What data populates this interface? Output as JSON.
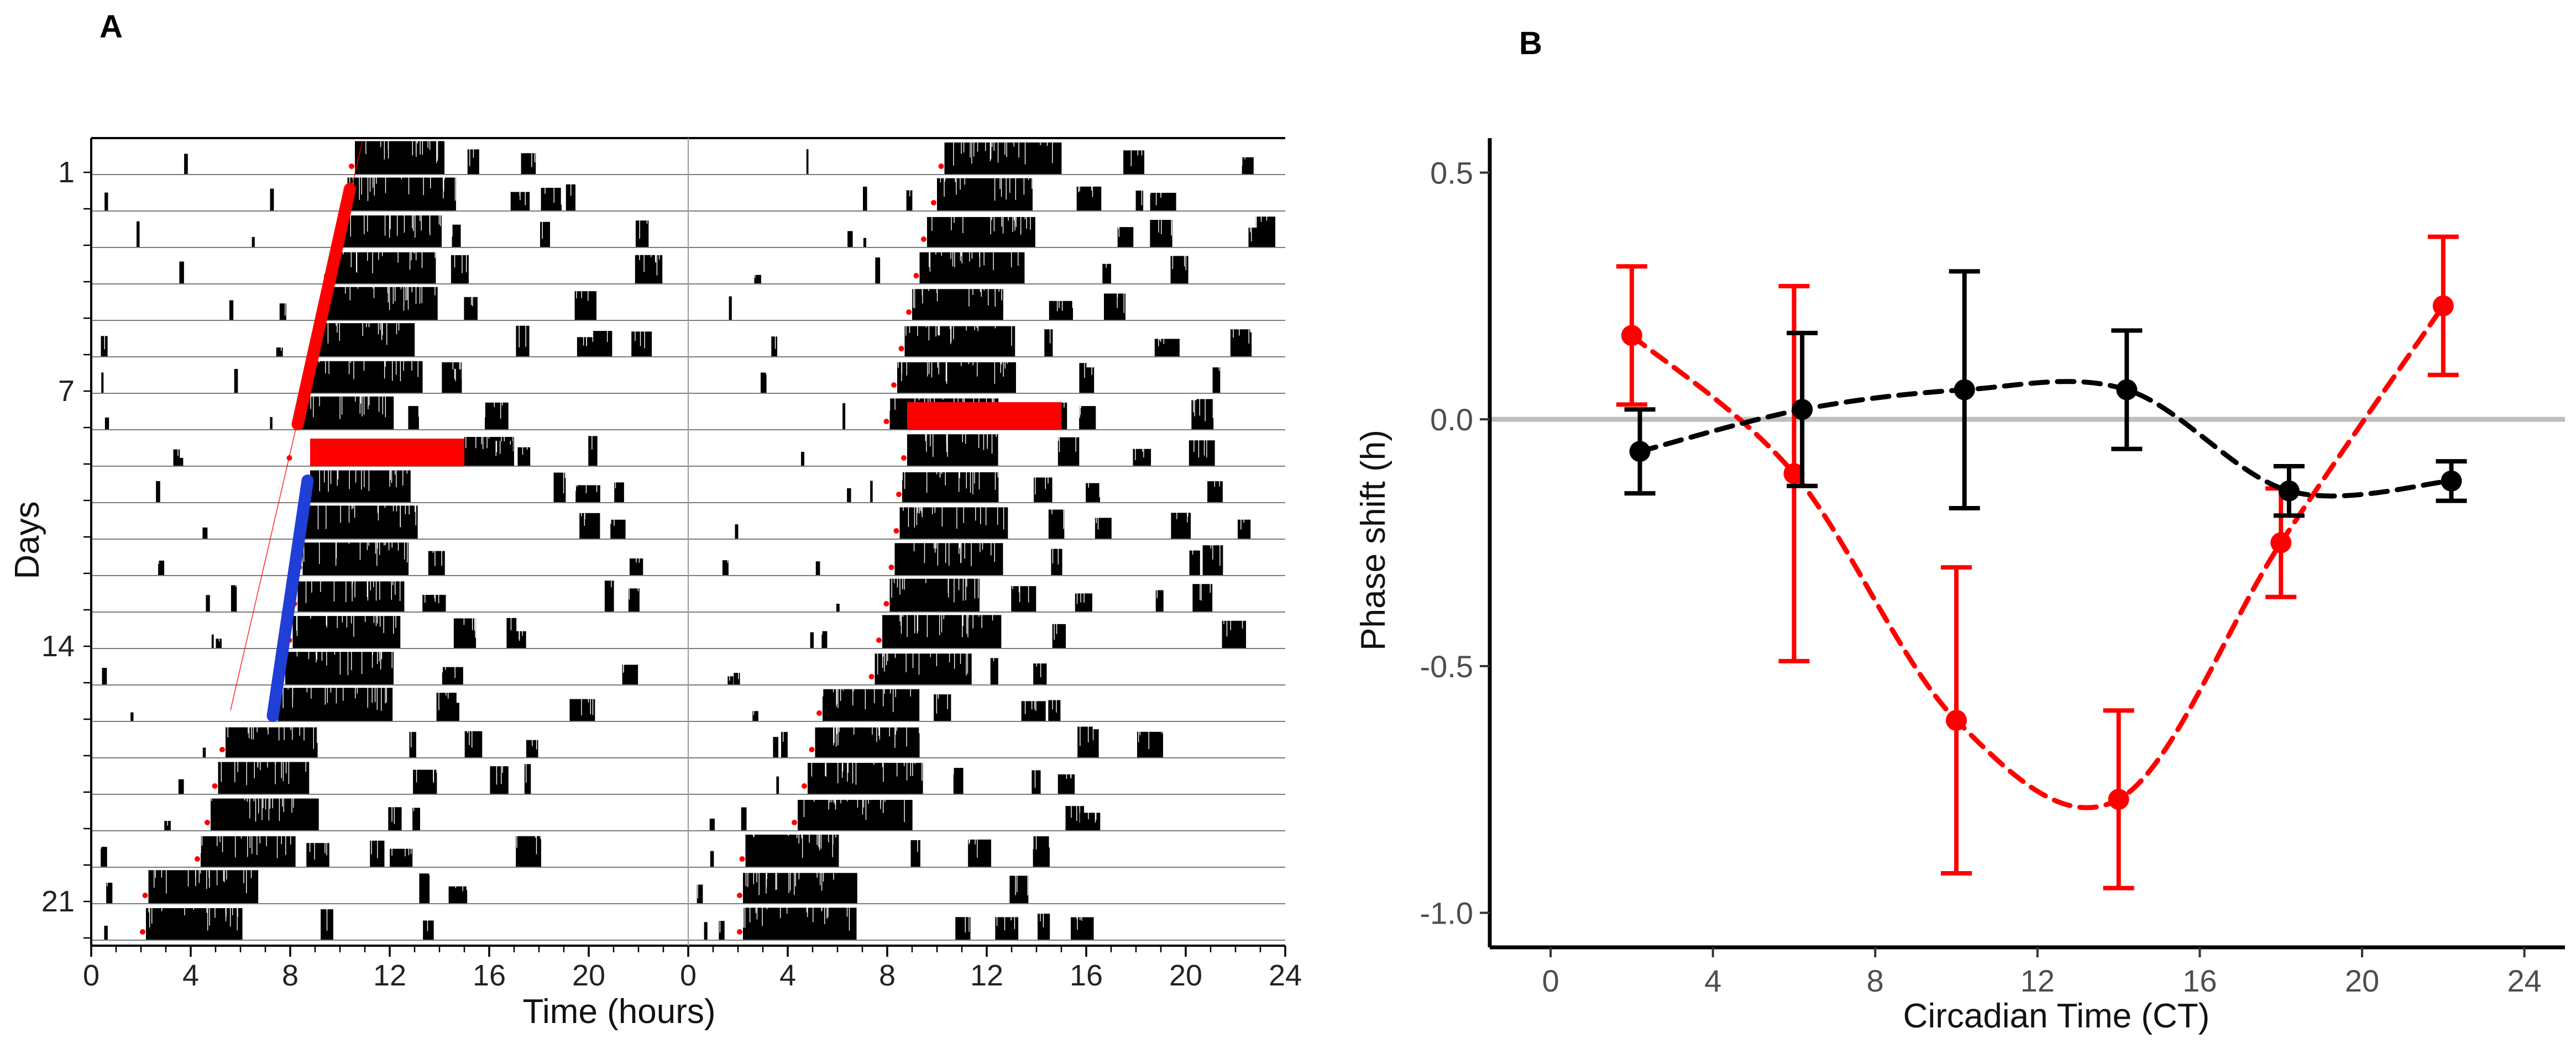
{
  "panels": {
    "a_label": "A",
    "b_label": "B"
  },
  "colors": {
    "red": "#ff0000",
    "blue": "#1f3fd6",
    "black": "#000000",
    "zero_line": "#bfbfbf"
  },
  "chart_data": [
    {
      "id": "A",
      "type": "actogram",
      "title": "",
      "xlabel": "Time (hours)",
      "ylabel": "Days",
      "x_ticks": [
        "0",
        "4",
        "8",
        "12",
        "16",
        "20",
        "0",
        "4",
        "8",
        "12",
        "16",
        "20",
        "24"
      ],
      "y_ticks": [
        {
          "label": "1",
          "day": 1
        },
        {
          "label": "7",
          "day": 7
        },
        {
          "label": "14",
          "day": 14
        },
        {
          "label": "21",
          "day": 21
        }
      ],
      "n_days": 22,
      "double_plotted_hours": 48,
      "activity_onsets_hours": [
        10.6,
        10.3,
        10.0,
        9.6,
        9.3,
        9.0,
        8.7,
        8.4,
        8.1,
        8.8,
        8.6,
        8.5,
        8.3,
        8.1,
        7.8,
        7.5,
        5.4,
        5.1,
        4.8,
        4.4,
        2.3,
        2.2
      ],
      "light_pulses": [
        {
          "day": 9,
          "start_hour": 8.8,
          "end_hour": 15.0,
          "color": "red",
          "plot": "left"
        },
        {
          "day": 8,
          "start_hour": 8.8,
          "end_hour": 15.0,
          "color": "red",
          "plot": "right"
        }
      ],
      "fit_lines": [
        {
          "color": "red",
          "from": {
            "day": 2,
            "hour": 10.4
          },
          "to": {
            "day": 8,
            "hour": 8.3
          }
        },
        {
          "color": "blue",
          "from": {
            "day": 10,
            "hour": 8.7
          },
          "to": {
            "day": 16,
            "hour": 7.3
          }
        }
      ]
    },
    {
      "id": "B",
      "type": "scatter",
      "title": "",
      "xlabel": "Circadian Time (CT)",
      "ylabel": "Phase shift (h)",
      "xlim": [
        -1.5,
        25
      ],
      "ylim": [
        -1.07,
        0.57
      ],
      "x_ticks": [
        "0",
        "4",
        "8",
        "12",
        "16",
        "20",
        "24"
      ],
      "y_ticks": [
        "0.5",
        "0.0",
        "-0.5",
        "-1.0"
      ],
      "reference_line_y": 0,
      "series": [
        {
          "name": "red",
          "color": "#ff0000",
          "x": [
            2,
            6,
            10,
            14,
            18,
            22
          ],
          "y": [
            0.17,
            -0.11,
            -0.61,
            -0.77,
            -0.25,
            0.23
          ],
          "err": [
            0.14,
            0.38,
            0.31,
            0.18,
            0.11,
            0.14
          ]
        },
        {
          "name": "black",
          "color": "#000000",
          "x": [
            2.2,
            6.2,
            10.2,
            14.2,
            18.2,
            22.2
          ],
          "y": [
            -0.065,
            0.02,
            0.06,
            0.06,
            -0.145,
            -0.125
          ],
          "err": [
            0.085,
            0.155,
            0.24,
            0.12,
            0.05,
            0.04
          ]
        }
      ]
    }
  ]
}
